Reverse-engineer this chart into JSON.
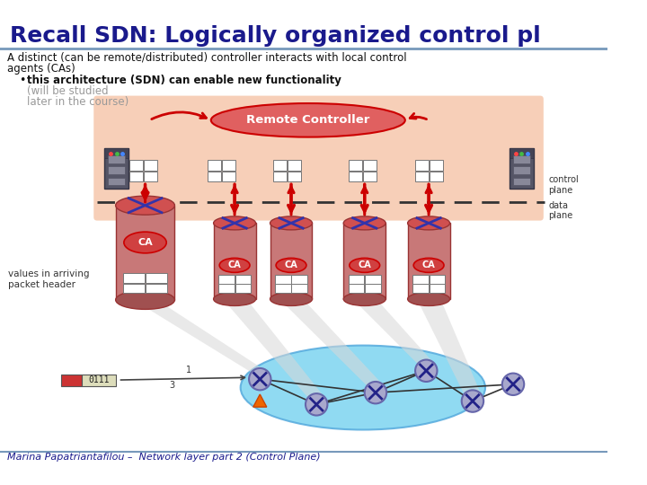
{
  "title": "Recall SDN: Logically organized control pl",
  "title_color": "#1a1a8c",
  "title_fontsize": 18,
  "bg_color": "#ffffff",
  "subtitle_line1": "A distinct (can be remote/distributed) controller interacts with local control",
  "subtitle_line2": "agents (CAs)",
  "bullet_bold": "this architecture (SDN) can enable new functionality",
  "bullet_gray1": "(will be studied",
  "bullet_gray2": "later in the course)",
  "footer": "Marina Papatriantafilou –  Network layer part 2 (Control Plane)",
  "footer_color": "#1a1a8c",
  "remote_controller_label": "Remote Controller",
  "control_plane_label": "control\nplane",
  "data_plane_label": "data\nplane",
  "ca_label": "CA",
  "values_label": "values in arriving\npacket header",
  "packet_label": "0111",
  "highlight_bg": "#f5c0a0",
  "dashed_line_color": "#333333",
  "arrow_color": "#cc0000",
  "network_cloud_color": "#7dd4f0",
  "router_color": "#9090c0",
  "server_color": "#444455",
  "text_gray": "#999999",
  "line_color": "#7799bb"
}
